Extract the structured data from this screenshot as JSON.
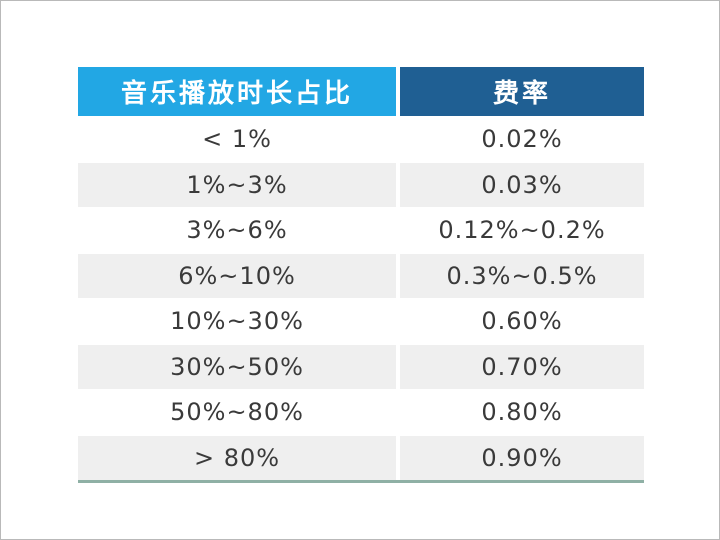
{
  "table": {
    "headers": [
      "音乐播放时长占比",
      "费率"
    ],
    "rows": [
      [
        "< 1%",
        "0.02%"
      ],
      [
        "1%~3%",
        "0.03%"
      ],
      [
        "3%~6%",
        "0.12%~0.2%"
      ],
      [
        "6%~10%",
        "0.3%~0.5%"
      ],
      [
        "10%~30%",
        "0.60%"
      ],
      [
        "30%~50%",
        "0.70%"
      ],
      [
        "50%~80%",
        "0.80%"
      ],
      [
        "> 80%",
        "0.90%"
      ]
    ]
  },
  "colors": {
    "header_left": "#22a7e4",
    "header_right": "#1f5f93",
    "row_alt": "#efefef",
    "bottom_rule": "#8fb0a5"
  }
}
